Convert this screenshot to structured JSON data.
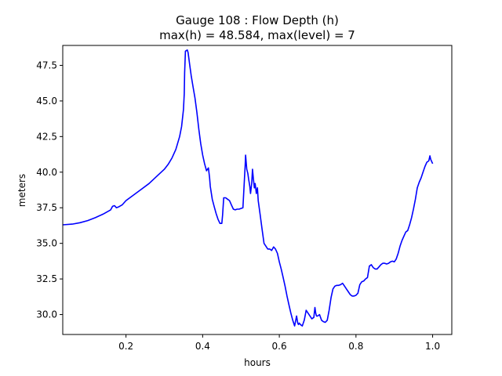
{
  "chart_data": {
    "type": "line",
    "title": "Gauge 108 : Flow Depth (h)",
    "subtitle": "max(h) =  48.584,    max(level) = 7",
    "xlabel": "hours",
    "ylabel": "meters",
    "xlim": [
      0.035,
      1.05
    ],
    "ylim": [
      28.6,
      48.9
    ],
    "xticks": [
      0.2,
      0.4,
      0.6,
      0.8,
      1.0
    ],
    "xtick_labels": [
      "0.2",
      "0.4",
      "0.6",
      "0.8",
      "1.0"
    ],
    "yticks": [
      30.0,
      32.5,
      35.0,
      37.5,
      40.0,
      42.5,
      45.0,
      47.5
    ],
    "ytick_labels": [
      "30.0",
      "32.5",
      "35.0",
      "37.5",
      "40.0",
      "42.5",
      "45.0",
      "47.5"
    ],
    "grid": false,
    "series": [
      {
        "color": "#0000ff",
        "x": [
          0.035,
          0.06,
          0.08,
          0.1,
          0.12,
          0.14,
          0.16,
          0.165,
          0.17,
          0.175,
          0.18,
          0.19,
          0.2,
          0.22,
          0.24,
          0.26,
          0.28,
          0.3,
          0.31,
          0.32,
          0.33,
          0.34,
          0.345,
          0.35,
          0.352,
          0.353,
          0.355,
          0.36,
          0.362,
          0.366,
          0.37,
          0.375,
          0.38,
          0.385,
          0.39,
          0.395,
          0.4,
          0.405,
          0.41,
          0.415,
          0.418,
          0.42,
          0.425,
          0.43,
          0.435,
          0.44,
          0.445,
          0.45,
          0.452,
          0.455,
          0.46,
          0.465,
          0.47,
          0.475,
          0.48,
          0.485,
          0.49,
          0.495,
          0.5,
          0.505,
          0.51,
          0.511,
          0.512,
          0.515,
          0.518,
          0.52,
          0.523,
          0.525,
          0.528,
          0.53,
          0.532,
          0.535,
          0.537,
          0.54,
          0.543,
          0.545,
          0.55,
          0.555,
          0.56,
          0.565,
          0.57,
          0.575,
          0.58,
          0.585,
          0.59,
          0.595,
          0.6,
          0.605,
          0.61,
          0.615,
          0.62,
          0.625,
          0.63,
          0.635,
          0.64,
          0.645,
          0.648,
          0.65,
          0.652,
          0.655,
          0.66,
          0.665,
          0.668,
          0.67,
          0.675,
          0.68,
          0.685,
          0.69,
          0.693,
          0.695,
          0.697,
          0.7,
          0.705,
          0.71,
          0.715,
          0.72,
          0.725,
          0.73,
          0.735,
          0.74,
          0.745,
          0.75,
          0.755,
          0.76,
          0.765,
          0.77,
          0.775,
          0.78,
          0.785,
          0.79,
          0.795,
          0.8,
          0.805,
          0.81,
          0.815,
          0.82,
          0.825,
          0.83,
          0.835,
          0.84,
          0.845,
          0.85,
          0.855,
          0.86,
          0.865,
          0.87,
          0.875,
          0.88,
          0.885,
          0.89,
          0.895,
          0.9,
          0.905,
          0.91,
          0.915,
          0.92,
          0.925,
          0.93,
          0.935,
          0.94,
          0.945,
          0.95,
          0.955,
          0.96,
          0.965,
          0.97,
          0.975,
          0.98,
          0.985,
          0.99,
          0.993,
          0.995,
          1.0
        ],
        "y": [
          36.3,
          36.35,
          36.45,
          36.6,
          36.8,
          37.05,
          37.35,
          37.6,
          37.65,
          37.5,
          37.55,
          37.7,
          38.0,
          38.4,
          38.8,
          39.2,
          39.7,
          40.2,
          40.55,
          41.0,
          41.6,
          42.5,
          43.2,
          44.4,
          45.5,
          47.0,
          48.5,
          48.58,
          48.4,
          47.6,
          46.8,
          46.0,
          45.2,
          44.2,
          43.0,
          42.0,
          41.2,
          40.6,
          40.1,
          40.3,
          39.6,
          39.0,
          38.1,
          37.6,
          37.1,
          36.7,
          36.4,
          36.4,
          37.0,
          38.2,
          38.2,
          38.1,
          38.0,
          37.7,
          37.4,
          37.35,
          37.4,
          37.4,
          37.45,
          37.5,
          40.0,
          40.5,
          41.2,
          40.2,
          39.9,
          39.5,
          39.0,
          38.5,
          39.2,
          40.2,
          39.6,
          38.9,
          39.2,
          38.5,
          38.9,
          38.0,
          37.0,
          36.0,
          35.0,
          34.8,
          34.6,
          34.6,
          34.5,
          34.75,
          34.6,
          34.3,
          33.7,
          33.2,
          32.6,
          32.0,
          31.3,
          30.7,
          30.1,
          29.6,
          29.2,
          29.9,
          29.4,
          29.3,
          29.4,
          29.3,
          29.2,
          29.6,
          30.0,
          30.3,
          30.1,
          29.9,
          29.7,
          29.8,
          30.5,
          30.1,
          29.9,
          29.9,
          30.0,
          29.6,
          29.5,
          29.45,
          29.6,
          30.3,
          31.2,
          31.8,
          32.0,
          32.05,
          32.05,
          32.1,
          32.2,
          32.0,
          31.8,
          31.6,
          31.4,
          31.3,
          31.3,
          31.35,
          31.5,
          32.1,
          32.3,
          32.35,
          32.5,
          32.6,
          33.4,
          33.5,
          33.3,
          33.2,
          33.2,
          33.35,
          33.5,
          33.6,
          33.6,
          33.55,
          33.6,
          33.7,
          33.75,
          33.7,
          33.9,
          34.3,
          34.8,
          35.2,
          35.5,
          35.8,
          35.9,
          36.3,
          36.8,
          37.4,
          38.1,
          38.9,
          39.3,
          39.6,
          40.0,
          40.4,
          40.7,
          40.8,
          41.15,
          40.9,
          40.6
        ]
      }
    ]
  }
}
